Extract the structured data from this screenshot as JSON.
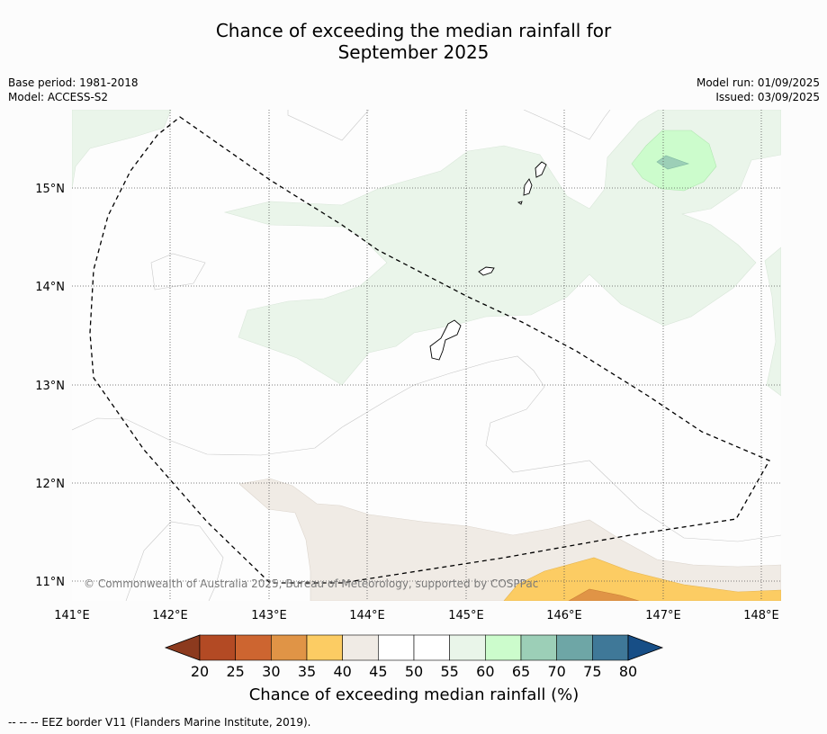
{
  "header": {
    "title_line1": "Chance of exceeding the median rainfall for",
    "title_line2": "September 2025",
    "base_period": "Base period: 1981-2018",
    "model": "Model: ACCESS-S2",
    "model_run": "Model run: 01/09/2025",
    "issued": "Issued: 03/09/2025"
  },
  "map": {
    "lat_labels": [
      "15°N",
      "14°N",
      "13°N",
      "12°N",
      "11°N"
    ],
    "lon_labels": [
      "141°E",
      "142°E",
      "143°E",
      "144°E",
      "145°E",
      "146°E",
      "147°E",
      "148°E"
    ],
    "copyright": "© Commonwealth of Australia 2025, Bureau of Meteorology, supported by COSPPac"
  },
  "colorbar": {
    "ticks": [
      "20",
      "25",
      "30",
      "35",
      "40",
      "45",
      "50",
      "55",
      "60",
      "65",
      "70",
      "75",
      "80"
    ],
    "colors": [
      "#8c3a1e",
      "#b34a24",
      "#cd6530",
      "#e09446",
      "#fccc63",
      "#f0ebe5",
      "#ffffff",
      "#ffffff",
      "#e9f5e9",
      "#ccfccc",
      "#9ccfb7",
      "#6ea6a6",
      "#3f7898",
      "#174e86"
    ],
    "label": "Chance of exceeding median rainfall (%)"
  },
  "footer": {
    "eez_note": "--  --  -- EEZ border V11 (Flanders Marine Institute, 2019)."
  }
}
